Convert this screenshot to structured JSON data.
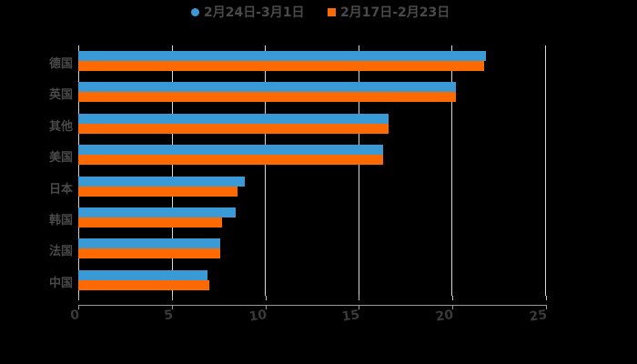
{
  "chart_data": {
    "type": "bar",
    "orientation": "horizontal",
    "title": "",
    "xlabel": "",
    "ylabel": "",
    "xlim": [
      0,
      25
    ],
    "xticks": [
      0,
      5,
      10,
      15,
      20,
      25
    ],
    "grid": true,
    "legend_position": "top",
    "categories": [
      "德国",
      "英国",
      "其他",
      "美国",
      "日本",
      "韩国",
      "法国",
      "中国"
    ],
    "series": [
      {
        "name": "2月24日-3月1日",
        "color": "#3a9ad6",
        "marker": "circle",
        "values": [
          21.8,
          20.2,
          16.6,
          16.3,
          8.9,
          8.4,
          7.6,
          6.9
        ]
      },
      {
        "name": "2月17日-2月23日",
        "color": "#ff6a00",
        "marker": "square",
        "values": [
          21.7,
          20.2,
          16.6,
          16.3,
          8.5,
          7.7,
          7.6,
          7.0
        ]
      }
    ]
  },
  "legend": {
    "series1": "2月24日-3月1日",
    "series2": "2月17日-2月23日"
  },
  "axis": {
    "x_ticks": [
      "0",
      "5",
      "10",
      "15",
      "20",
      "25"
    ]
  },
  "colors": {
    "series1": "#3a9ad6",
    "series2": "#ff6a00"
  }
}
